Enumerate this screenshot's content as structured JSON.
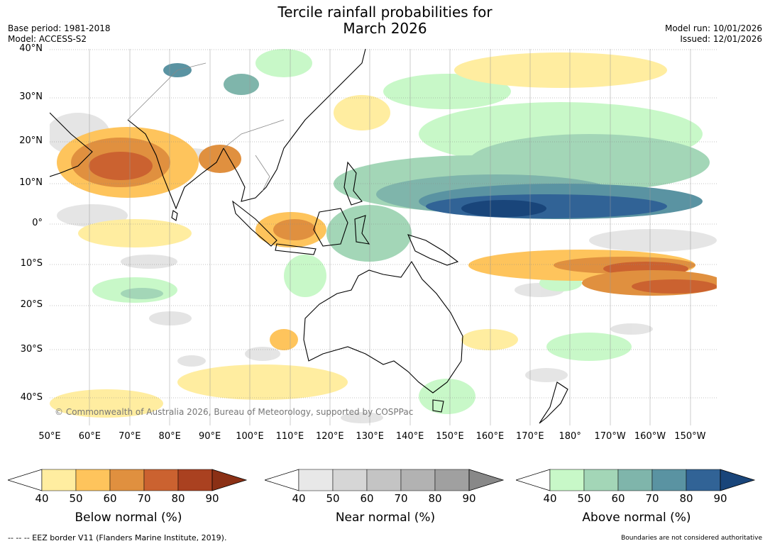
{
  "title": {
    "line1": "Tercile rainfall probabilities for",
    "line2": "March 2026"
  },
  "meta": {
    "base_period": "Base period: 1981-2018",
    "model": "Model: ACCESS-S2",
    "model_run": "Model run: 10/01/2026",
    "issued": "Issued: 12/01/2026"
  },
  "map": {
    "lat_labels": [
      "40°N",
      "30°N",
      "20°N",
      "10°N",
      "0°",
      "10°S",
      "20°S",
      "30°S",
      "40°S"
    ],
    "lon_labels": [
      "50°E",
      "60°E",
      "70°E",
      "80°E",
      "90°E",
      "100°E",
      "110°E",
      "120°E",
      "130°E",
      "140°E",
      "150°E",
      "160°E",
      "170°E",
      "180°",
      "170°W",
      "160°W",
      "150°W"
    ],
    "copyright": "© Commonwealth of Australia 2026, Bureau of Meteorology, supported by COSPPac",
    "background_color": "#ffffff"
  },
  "colorbars": [
    {
      "name": "below",
      "label": "Below normal (%)",
      "ticks": [
        "40",
        "50",
        "60",
        "70",
        "80",
        "90"
      ],
      "colors": [
        "#ffeda0",
        "#fec45c",
        "#e0903f",
        "#cb6230",
        "#aa4120",
        "#8b3015"
      ]
    },
    {
      "name": "near",
      "label": "Near normal (%)",
      "ticks": [
        "40",
        "50",
        "60",
        "70",
        "80",
        "90"
      ],
      "colors": [
        "#e8e8e8",
        "#d6d6d6",
        "#c4c4c4",
        "#b2b2b2",
        "#a0a0a0",
        "#888888"
      ]
    },
    {
      "name": "above",
      "label": "Above normal (%)",
      "ticks": [
        "40",
        "50",
        "60",
        "70",
        "80",
        "90"
      ],
      "colors": [
        "#c8f8c8",
        "#a3d6b7",
        "#7fb5ab",
        "#5a93a2",
        "#316396",
        "#19457a"
      ]
    }
  ],
  "footer": {
    "left": "--  --  -- EEZ border V11 (Flanders Marine Institute, 2019).",
    "right": "Boundaries are not considered authoritative"
  }
}
